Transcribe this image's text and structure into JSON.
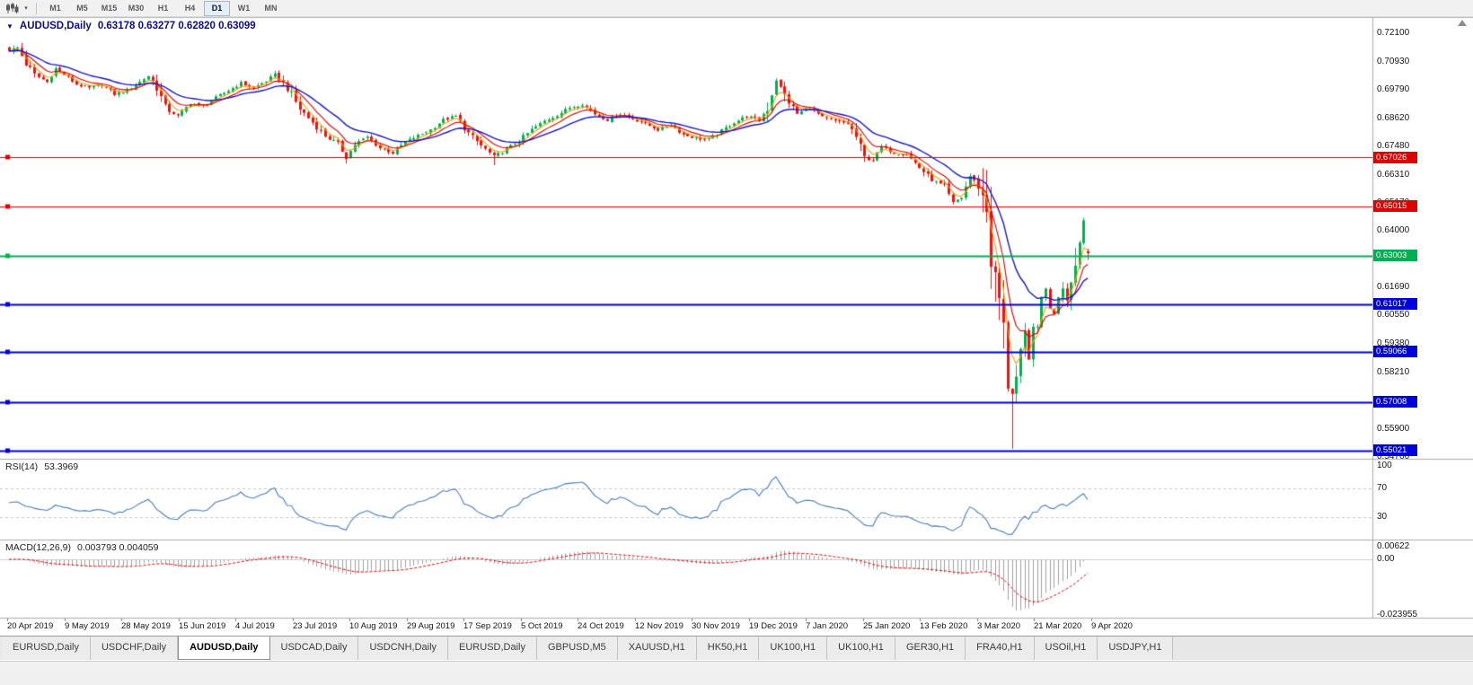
{
  "toolbar": {
    "timeframes": [
      "M1",
      "M5",
      "M15",
      "M30",
      "H1",
      "H4",
      "D1",
      "W1",
      "MN"
    ],
    "active_timeframe": "D1"
  },
  "icons": {
    "chart_type": "candlestick-chart",
    "dropdown_caret": "▾",
    "symbol_caret": "▼",
    "chart_shift_marker": "up-triangle"
  },
  "chart": {
    "title_symbol": "AUDUSD,Daily",
    "title_ohlc": "0.63178 0.63277 0.62820 0.63099",
    "price_axis_labels": [
      "0.72100",
      "0.70930",
      "0.69790",
      "0.68620",
      "0.67480",
      "0.66310",
      "0.65170",
      "0.64000",
      "0.62860",
      "0.61690",
      "0.60550",
      "0.59380",
      "0.58210",
      "0.57040",
      "0.55900",
      "0.54760"
    ],
    "date_axis_labels": [
      "20 Apr 2019",
      "9 May 2019",
      "28 May 2019",
      "15 Jun 2019",
      "4 Jul 2019",
      "23 Jul 2019",
      "10 Aug 2019",
      "29 Aug 2019",
      "17 Sep 2019",
      "5 Oct 2019",
      "24 Oct 2019",
      "12 Nov 2019",
      "30 Nov 2019",
      "19 Dec 2019",
      "7 Jan 2020",
      "25 Jan 2020",
      "13 Feb 2020",
      "3 Mar 2020",
      "21 Mar 2020",
      "9 Apr 2020"
    ],
    "levels": [
      {
        "price": 0.67026,
        "label": "0.67026",
        "color": "#e00000",
        "width": 1
      },
      {
        "price": 0.65015,
        "label": "0.65015",
        "color": "#e00000",
        "width": 1
      },
      {
        "price": 0.63003,
        "label": "0.63003",
        "color": "#00b050",
        "width": 2
      },
      {
        "price": 0.61017,
        "label": "0.61017",
        "color": "#0000dc",
        "width": 2
      },
      {
        "price": 0.59066,
        "label": "0.59066",
        "color": "#0000dc",
        "width": 2
      },
      {
        "price": 0.57008,
        "label": "0.57008",
        "color": "#0000dc",
        "width": 2
      },
      {
        "price": 0.55021,
        "label": "0.55021",
        "color": "#0000dc",
        "width": 2
      }
    ]
  },
  "rsi_panel": {
    "name": "RSI(14)",
    "value": "53.3969",
    "axis_labels": [
      "100",
      "70",
      "30"
    ],
    "upper_level": 70,
    "lower_level": 30
  },
  "macd_panel": {
    "name": "MACD(12,26,9)",
    "values": "0.003793 0.004059",
    "axis_labels": [
      "0.00622",
      "0.00",
      "-0.023955"
    ]
  },
  "tabs": {
    "items": [
      "EURUSD,Daily",
      "USDCHF,Daily",
      "AUDUSD,Daily",
      "USDCAD,Daily",
      "USDCNH,Daily",
      "EURUSD,Daily",
      "GBPUSD,M5",
      "XAUUSD,H1",
      "HK50,H1",
      "UK100,H1",
      "UK100,H1",
      "GER30,H1",
      "FRA40,H1",
      "USOil,H1",
      "USDJPY,H1"
    ],
    "active_index": 2
  },
  "colors": {
    "bull": "#00b050",
    "bear": "#ee1111",
    "ma_fast": "#f0a000",
    "ma_mid": "#e00000",
    "ma_slow": "#1616c8",
    "rsi_line": "#4a7ebb",
    "macd_hist": "#a0a0a0",
    "macd_signal": "#e00000",
    "level_red": "#e00000",
    "level_blue": "#0000dc",
    "level_green": "#00b050"
  },
  "chart_data": {
    "type": "candlestick",
    "symbol": "AUDUSD",
    "timeframe": "D1",
    "current_ohlc": {
      "open": 0.63178,
      "high": 0.63277,
      "low": 0.6282,
      "close": 0.63099
    },
    "y_range": [
      0.5469,
      0.7272
    ],
    "num_candles": 257,
    "support_resistance_levels": [
      0.67026,
      0.65015,
      0.63003,
      0.61017,
      0.59066,
      0.57008,
      0.55021
    ],
    "close_anchors": [
      [
        0,
        0.714
      ],
      [
        2,
        0.715
      ],
      [
        4,
        0.7085
      ],
      [
        6,
        0.704
      ],
      [
        9,
        0.701
      ],
      [
        11,
        0.7065
      ],
      [
        13,
        0.704
      ],
      [
        16,
        0.7
      ],
      [
        19,
        0.6985
      ],
      [
        22,
        0.7
      ],
      [
        25,
        0.696
      ],
      [
        28,
        0.6975
      ],
      [
        31,
        0.701
      ],
      [
        33,
        0.7035
      ],
      [
        35,
        0.699
      ],
      [
        37,
        0.6905
      ],
      [
        40,
        0.687
      ],
      [
        43,
        0.6925
      ],
      [
        46,
        0.691
      ],
      [
        49,
        0.6945
      ],
      [
        52,
        0.6975
      ],
      [
        55,
        0.7005
      ],
      [
        58,
        0.6985
      ],
      [
        61,
        0.7015
      ],
      [
        63,
        0.704
      ],
      [
        66,
        0.6985
      ],
      [
        69,
        0.69
      ],
      [
        72,
        0.6845
      ],
      [
        75,
        0.679
      ],
      [
        78,
        0.6755
      ],
      [
        80,
        0.67
      ],
      [
        82,
        0.6755
      ],
      [
        85,
        0.6785
      ],
      [
        88,
        0.674
      ],
      [
        91,
        0.672
      ],
      [
        94,
        0.6765
      ],
      [
        97,
        0.679
      ],
      [
        100,
        0.6815
      ],
      [
        103,
        0.6855
      ],
      [
        106,
        0.687
      ],
      [
        109,
        0.68
      ],
      [
        112,
        0.675
      ],
      [
        115,
        0.6705
      ],
      [
        118,
        0.6735
      ],
      [
        121,
        0.677
      ],
      [
        124,
        0.6815
      ],
      [
        127,
        0.685
      ],
      [
        130,
        0.6875
      ],
      [
        133,
        0.6905
      ],
      [
        136,
        0.692
      ],
      [
        139,
        0.688
      ],
      [
        142,
        0.6855
      ],
      [
        145,
        0.688
      ],
      [
        148,
        0.686
      ],
      [
        151,
        0.684
      ],
      [
        154,
        0.6815
      ],
      [
        157,
        0.6835
      ],
      [
        160,
        0.6795
      ],
      [
        163,
        0.678
      ],
      [
        166,
        0.6775
      ],
      [
        169,
        0.681
      ],
      [
        172,
        0.6845
      ],
      [
        175,
        0.687
      ],
      [
        178,
        0.6855
      ],
      [
        180,
        0.6905
      ],
      [
        182,
        0.702
      ],
      [
        184,
        0.6955
      ],
      [
        187,
        0.688
      ],
      [
        190,
        0.6905
      ],
      [
        193,
        0.6865
      ],
      [
        196,
        0.685
      ],
      [
        199,
        0.684
      ],
      [
        201,
        0.6785
      ],
      [
        203,
        0.67
      ],
      [
        205,
        0.669
      ],
      [
        207,
        0.6745
      ],
      [
        210,
        0.672
      ],
      [
        213,
        0.6715
      ],
      [
        216,
        0.666
      ],
      [
        219,
        0.661
      ],
      [
        222,
        0.658
      ],
      [
        224,
        0.6515
      ],
      [
        226,
        0.654
      ],
      [
        228,
        0.6625
      ],
      [
        230,
        0.6585
      ],
      [
        232,
        0.649
      ],
      [
        233,
        0.629
      ],
      [
        234,
        0.6185
      ],
      [
        235,
        0.612
      ],
      [
        236,
        0.599
      ],
      [
        237,
        0.578
      ],
      [
        238,
        0.574
      ],
      [
        239,
        0.58
      ],
      [
        240,
        0.59
      ],
      [
        241,
        0.5965
      ],
      [
        242,
        0.587
      ],
      [
        243,
        0.603
      ],
      [
        244,
        0.5965
      ],
      [
        245,
        0.613
      ],
      [
        246,
        0.6175
      ],
      [
        247,
        0.608
      ],
      [
        248,
        0.6065
      ],
      [
        249,
        0.6135
      ],
      [
        250,
        0.6175
      ],
      [
        251,
        0.6135
      ],
      [
        252,
        0.619
      ],
      [
        253,
        0.6285
      ],
      [
        254,
        0.6355
      ],
      [
        255,
        0.6445
      ],
      [
        256,
        0.631
      ]
    ],
    "wick_overrides": {
      "1": {
        "high": 0.716
      },
      "80": {
        "low": 0.6677
      },
      "115": {
        "low": 0.667
      },
      "203": {
        "low": 0.6683
      },
      "238": {
        "low": 0.551
      }
    },
    "indicators": {
      "rsi": {
        "period": 14,
        "current": 53.3969
      },
      "macd": {
        "fast": 12,
        "slow": 26,
        "signal": 9,
        "current_main": 0.003793,
        "current_signal": 0.004059,
        "panel_max": 0.00622,
        "panel_min": -0.023955
      },
      "moving_averages": [
        {
          "period": 4,
          "method": "ema",
          "color": "#f0a000"
        },
        {
          "period": 8,
          "method": "ema",
          "color": "#e00000"
        },
        {
          "period": 18,
          "method": "ema",
          "color": "#1616c8"
        }
      ]
    }
  }
}
